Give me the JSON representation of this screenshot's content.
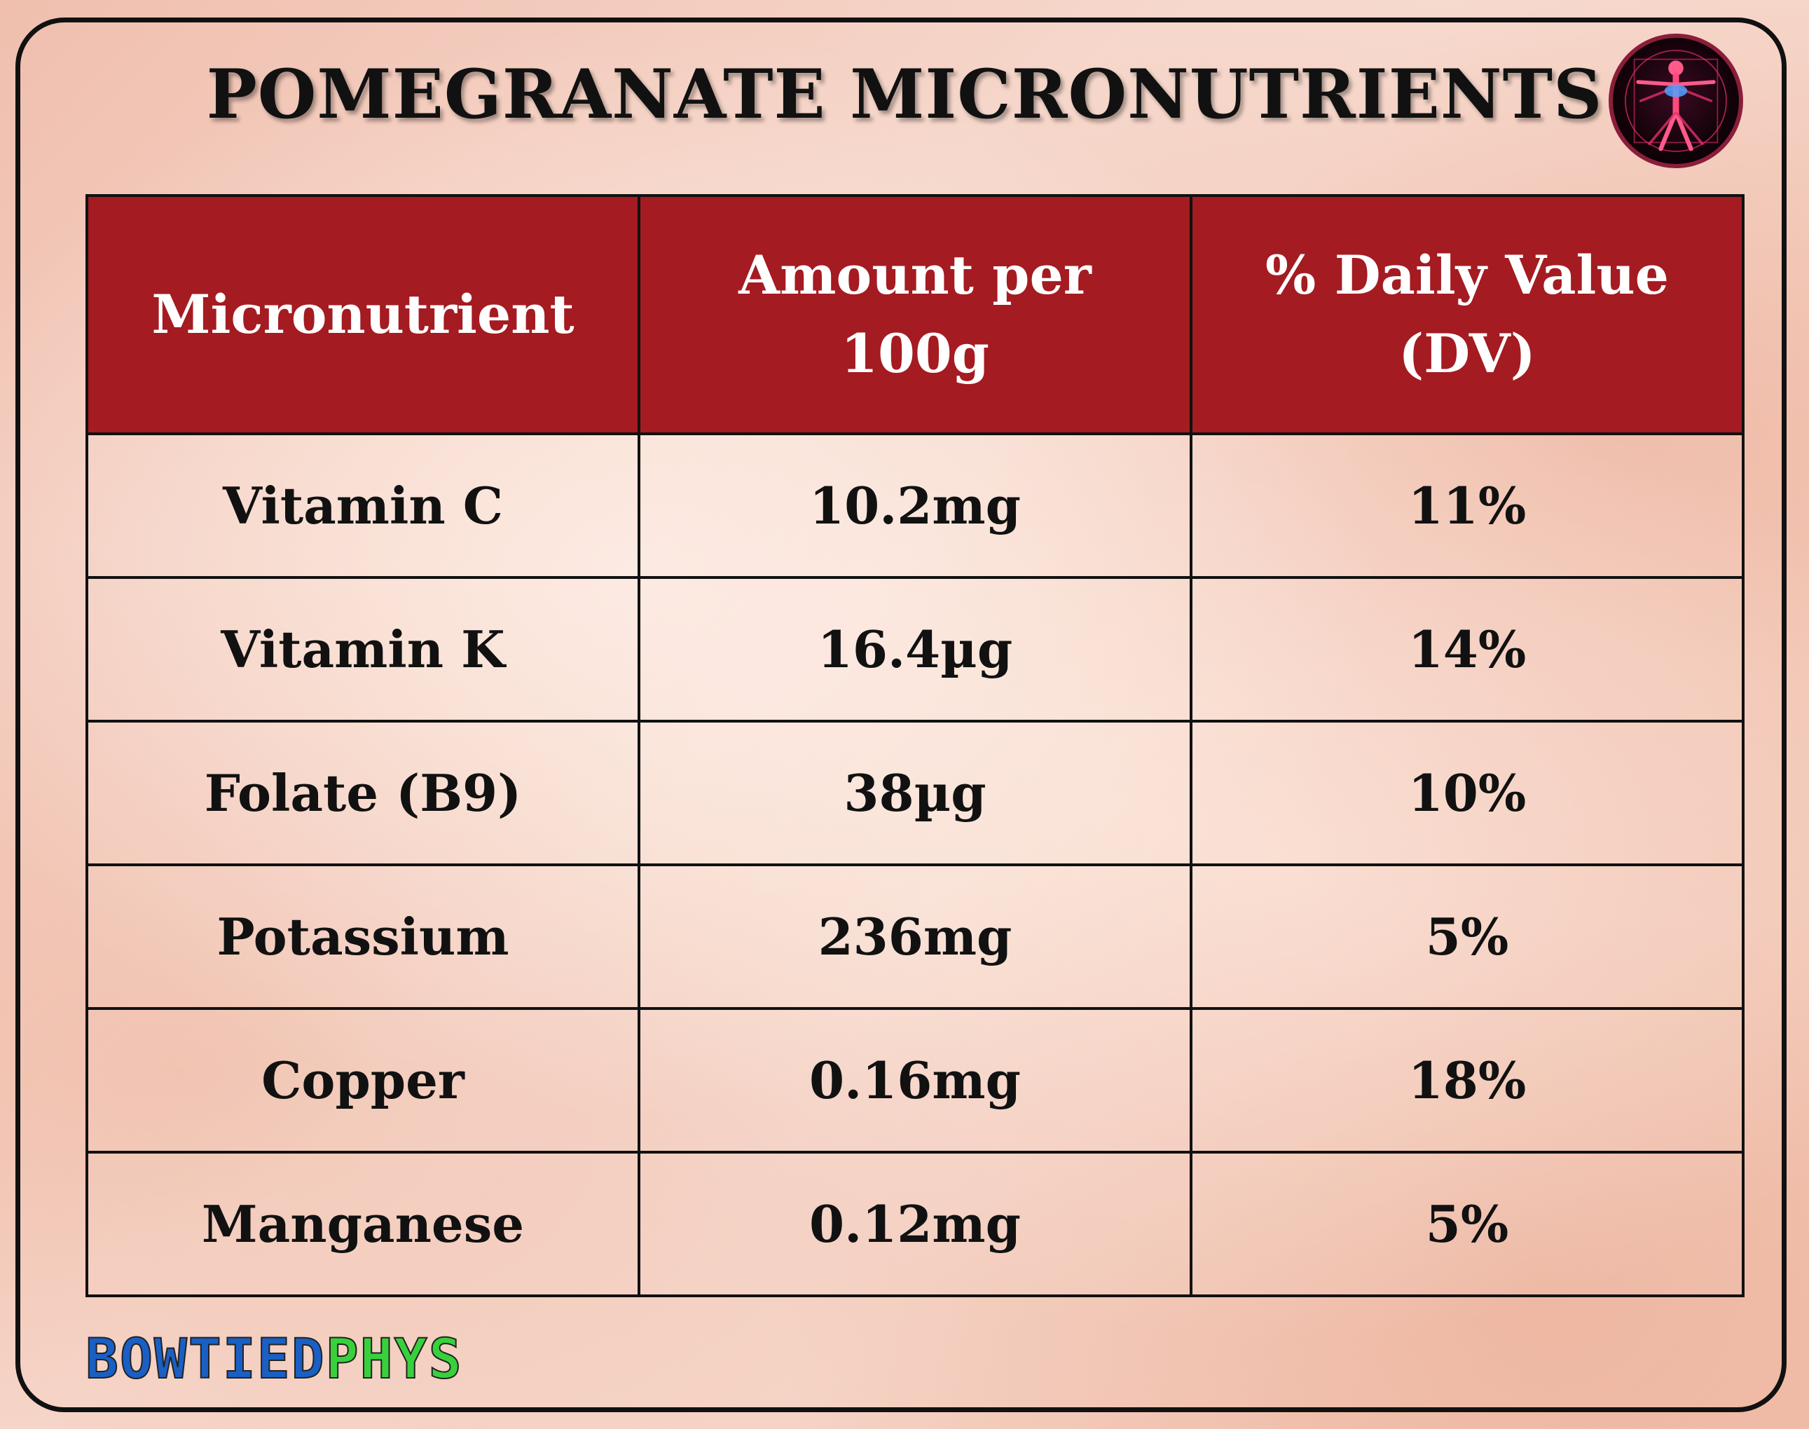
{
  "title": "POMEGRANATE MICRONUTRIENTS",
  "logo": {
    "icon": "vitruvian-man-icon",
    "accent": "#e0306a"
  },
  "table": {
    "headers": {
      "micronutrient": "Micronutrient",
      "amount_line1": "Amount per",
      "amount_line2": "100g",
      "dv_line1": "% Daily Value",
      "dv_line2": "(DV)"
    },
    "rows": [
      {
        "name": "Vitamin C",
        "amount": "10.2mg",
        "dv": "11%"
      },
      {
        "name": "Vitamin K",
        "amount": "16.4µg",
        "dv": "14%"
      },
      {
        "name": "Folate (B9)",
        "amount": "38µg",
        "dv": "10%"
      },
      {
        "name": "Potassium",
        "amount": "236mg",
        "dv": "5%"
      },
      {
        "name": "Copper",
        "amount": "0.16mg",
        "dv": "18%"
      },
      {
        "name": "Manganese",
        "amount": "0.12mg",
        "dv": "5%"
      }
    ]
  },
  "brand": {
    "part1": "BOWTIED",
    "part2": "PHYS"
  },
  "colors": {
    "header_bg": "#a41b21",
    "header_text": "#ffffff",
    "brand_blue": "#1a5fc4",
    "brand_green": "#38d13c"
  }
}
